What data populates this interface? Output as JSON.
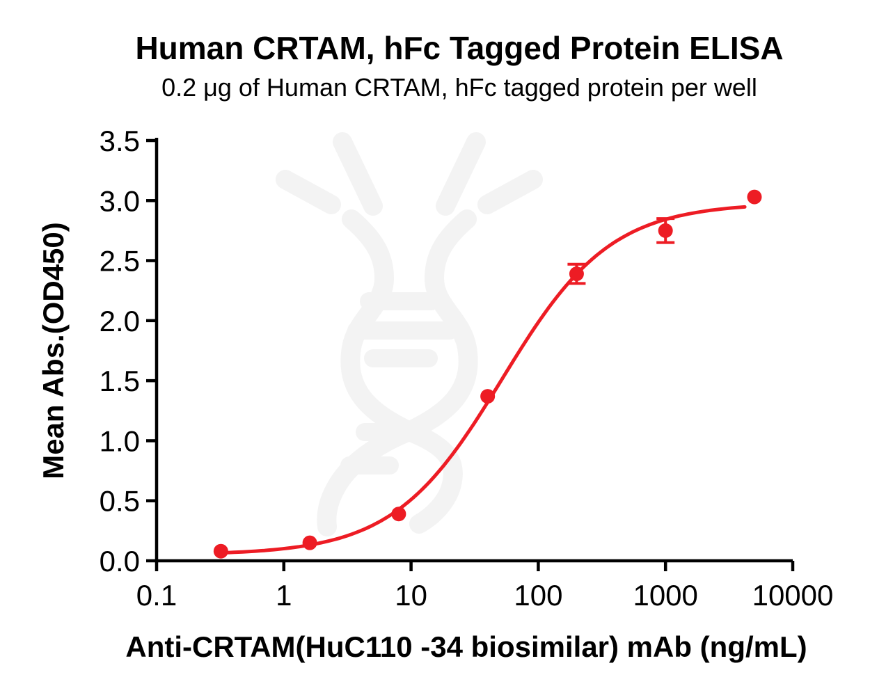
{
  "chart_data": {
    "type": "scatter",
    "title": "Human CRTAM, hFc Tagged Protein ELISA",
    "subtitle": "0.2 μg of Human CRTAM, hFc tagged protein per well",
    "xlabel": "Anti-CRTAM(HuC110 -34 biosimilar) mAb (ng/mL)",
    "ylabel": "Mean Abs.(OD450)",
    "x_scale": "log10",
    "xlim": [
      0.1,
      10000
    ],
    "ylim": [
      0.0,
      3.5
    ],
    "x": [
      0.32,
      1.6,
      8,
      40,
      200,
      1000,
      5000
    ],
    "y": [
      0.08,
      0.15,
      0.39,
      1.37,
      2.39,
      2.75,
      3.03
    ],
    "y_err": [
      0,
      0,
      0,
      0,
      0.08,
      0.1,
      0
    ],
    "x_ticks": [
      0.1,
      1,
      10,
      100,
      1000,
      10000
    ],
    "x_tick_labels": [
      "0.1",
      "1",
      "10",
      "100",
      "1000",
      "10000"
    ],
    "y_ticks": [
      0.0,
      0.5,
      1.0,
      1.5,
      2.0,
      2.5,
      3.0,
      3.5
    ],
    "y_tick_labels": [
      "0.0",
      "0.5",
      "1.0",
      "1.5",
      "2.0",
      "2.5",
      "3.0",
      "3.5"
    ],
    "fit_curve": {
      "model": "4PL",
      "bottom": 0.05,
      "top": 2.98,
      "ec50": 52,
      "hill": 1.02,
      "x_start": 0.32,
      "x_end": 4200
    },
    "grid": false,
    "legend": "none",
    "series_color": "#ED1C24",
    "axis_color": "#000000",
    "watermark_color": "#F3F3F3",
    "background_color": "#FFFFFF"
  }
}
